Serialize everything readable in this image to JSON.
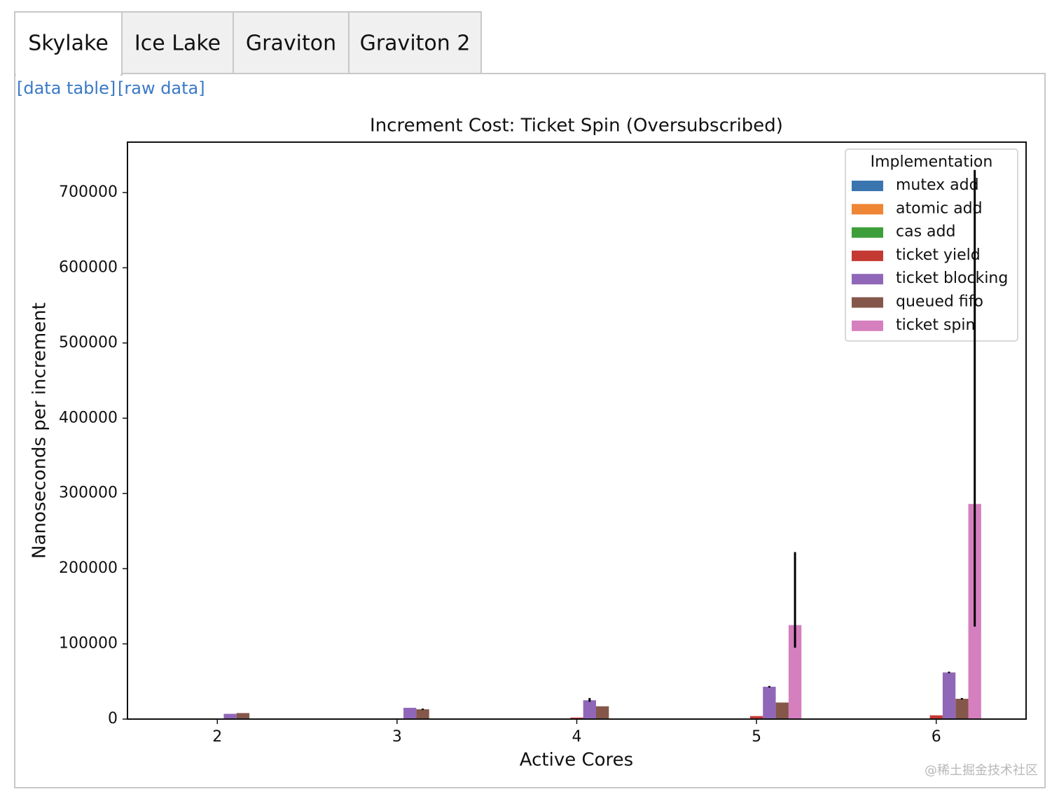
{
  "tabs": [
    "Skylake",
    "Ice Lake",
    "Graviton",
    "Graviton 2"
  ],
  "links": [
    "[data table]",
    "[raw data]"
  ],
  "watermark": "@稀土掘金技术社区",
  "chart_data": {
    "type": "bar",
    "title": "Increment Cost: Ticket Spin (Oversubscribed)",
    "x_label": "Active Cores",
    "y_label": "Nanoseconds per increment",
    "categories": [
      "2",
      "3",
      "4",
      "5",
      "6"
    ],
    "ylim": [
      0,
      767000
    ],
    "yticks": [
      0,
      100000,
      200000,
      300000,
      400000,
      500000,
      600000,
      700000
    ],
    "legend_title": "Implementation",
    "legend": "upper right",
    "series": [
      {
        "name": "mutex add",
        "color": "#3a75b0",
        "values": [
          0,
          0,
          0,
          0,
          0
        ],
        "errors": [
          null,
          null,
          null,
          null,
          null
        ]
      },
      {
        "name": "atomic add",
        "color": "#ef8636",
        "values": [
          0,
          0,
          0,
          0,
          0
        ],
        "errors": [
          null,
          null,
          null,
          null,
          null
        ]
      },
      {
        "name": "cas add",
        "color": "#3d9e3a",
        "values": [
          0,
          0,
          0,
          0,
          0
        ],
        "errors": [
          null,
          null,
          null,
          null,
          null
        ]
      },
      {
        "name": "ticket yield",
        "color": "#c43932",
        "values": [
          0,
          1000,
          2000,
          4000,
          5000
        ],
        "errors": [
          null,
          null,
          null,
          null,
          null
        ]
      },
      {
        "name": "ticket blocking",
        "color": "#9067b8",
        "values": [
          7000,
          15000,
          25000,
          43000,
          62000
        ],
        "errors": [
          null,
          null,
          [
            2000,
            3000
          ],
          [
            1000,
            1000
          ],
          [
            1000,
            1000
          ]
        ]
      },
      {
        "name": "queued fifo",
        "color": "#85574b",
        "values": [
          8000,
          13000,
          17000,
          22000,
          27000
        ],
        "errors": [
          null,
          [
            1000,
            1000
          ],
          null,
          null,
          [
            1000,
            1000
          ]
        ]
      },
      {
        "name": "ticket spin",
        "color": "#d57fbf",
        "values": [
          null,
          null,
          null,
          125000,
          286000
        ],
        "errors": [
          null,
          null,
          null,
          [
            30000,
            97000
          ],
          [
            163000,
            444000
          ]
        ]
      }
    ]
  }
}
